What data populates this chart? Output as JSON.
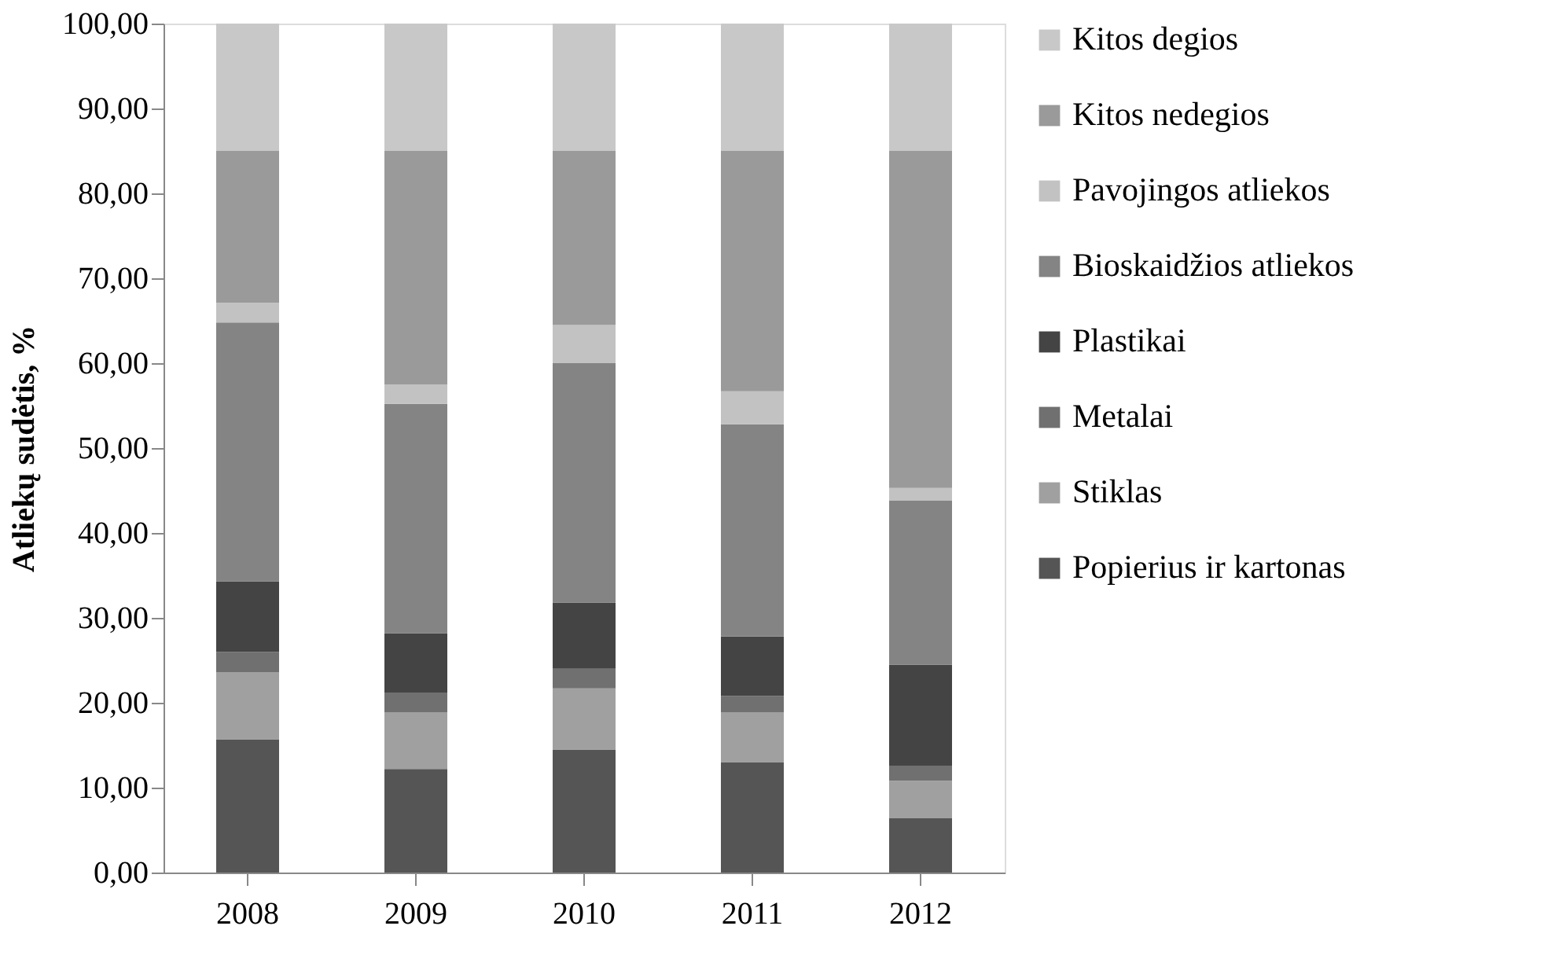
{
  "chart_data": {
    "type": "bar",
    "stacked": true,
    "ylabel": "Atliekų sudėtis, %",
    "categories": [
      "2008",
      "2009",
      "2010",
      "2011",
      "2012"
    ],
    "series": [
      {
        "name": "Popierius ir kartonas",
        "color": "#555555",
        "values": [
          15.7,
          12.2,
          14.5,
          13.0,
          6.4
        ]
      },
      {
        "name": "Stiklas",
        "color": "#a0a0a0",
        "values": [
          7.9,
          6.7,
          7.2,
          5.9,
          4.4
        ]
      },
      {
        "name": "Metalai",
        "color": "#707070",
        "values": [
          2.4,
          2.3,
          2.3,
          1.9,
          1.8
        ]
      },
      {
        "name": "Plastikai",
        "color": "#444444",
        "values": [
          8.3,
          7.0,
          7.8,
          7.0,
          11.9
        ]
      },
      {
        "name": "Bioskaidžios atliekos",
        "color": "#848484",
        "values": [
          30.5,
          27.0,
          28.2,
          25.0,
          19.3
        ]
      },
      {
        "name": "Pavojingos atliekos",
        "color": "#c2c2c2",
        "values": [
          2.3,
          2.3,
          4.5,
          3.9,
          1.5
        ]
      },
      {
        "name": "Kitos nedegios",
        "color": "#9a9a9a",
        "values": [
          17.9,
          27.5,
          20.5,
          28.3,
          39.7
        ]
      },
      {
        "name": "Kitos degios",
        "color": "#c8c8c8",
        "values": [
          15.0,
          15.0,
          15.0,
          15.0,
          15.0
        ]
      }
    ],
    "ylim": [
      0,
      100
    ],
    "yticks": [
      {
        "value": 0,
        "label": "0,00"
      },
      {
        "value": 10,
        "label": "10,00"
      },
      {
        "value": 20,
        "label": "20,00"
      },
      {
        "value": 30,
        "label": "30,00"
      },
      {
        "value": 40,
        "label": "40,00"
      },
      {
        "value": 50,
        "label": "50,00"
      },
      {
        "value": 60,
        "label": "60,00"
      },
      {
        "value": 70,
        "label": "70,00"
      },
      {
        "value": 80,
        "label": "80,00"
      },
      {
        "value": 90,
        "label": "90,00"
      },
      {
        "value": 100,
        "label": "100,00"
      }
    ],
    "grid": false,
    "legend": "right"
  }
}
